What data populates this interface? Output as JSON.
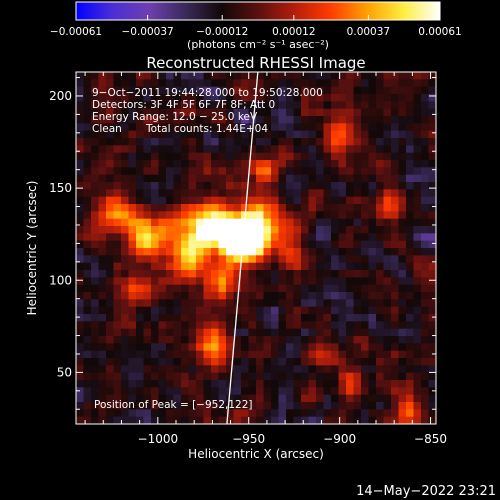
{
  "chart_data": {
    "type": "heatmap",
    "title": "Reconstructed RHESSI Image",
    "xlabel": "Heliocentric X (arcsec)",
    "ylabel": "Heliocentric Y (arcsec)",
    "xlim": [
      -1045,
      -847
    ],
    "ylim": [
      22,
      213
    ],
    "x_ticks": [
      -1000,
      -950,
      -900,
      -850
    ],
    "x_tick_labels": [
      "−1000",
      "−950",
      "−900",
      "−850"
    ],
    "y_ticks": [
      50,
      100,
      150,
      200
    ],
    "y_tick_labels": [
      "50",
      "100",
      "150",
      "200"
    ],
    "colorbar": {
      "range": [
        -0.00061,
        0.00061
      ],
      "ticks": [
        -0.00061,
        -0.00037,
        -0.00012,
        0.00012,
        0.00037,
        0.00061
      ],
      "tick_labels": [
        "−0.00061",
        "−0.00037",
        "−0.00012",
        "0.00012",
        "0.00037",
        "0.00061"
      ],
      "unit_label": "(photons cm⁻² s⁻¹ asec⁻²)",
      "colormap": [
        "#0000ff",
        "#4b2fd6",
        "#6d3fb0",
        "#3a2a5a",
        "#120808",
        "#5a1010",
        "#b41e0a",
        "#ff3c00",
        "#ffa000",
        "#ffee40",
        "#ffffff"
      ]
    },
    "annotations": {
      "time": "9−Oct−2011 19:44:28.000 to 19:50:28.000",
      "detectors": "Detectors: 3F 4F 5F 6F 7F 8F; Att 0",
      "energy": "Energy Range: 12.0 − 25.0 keV",
      "method": "Clean",
      "counts": "Total counts: 1.44E+04",
      "peak": "Position of Peak = [−952,122]"
    },
    "peak": {
      "x": -952,
      "y": 122
    },
    "limb": [
      [
        -962,
        22
      ],
      [
        -945,
        213
      ]
    ],
    "emission_sources": [
      {
        "x": -952,
        "y": 122,
        "sx": 8,
        "sy": 8,
        "amp": 1.0
      },
      {
        "x": -948,
        "y": 128,
        "sx": 14,
        "sy": 12,
        "amp": 0.7
      },
      {
        "x": -972,
        "y": 130,
        "sx": 9,
        "sy": 10,
        "amp": 0.65
      },
      {
        "x": -985,
        "y": 118,
        "sx": 10,
        "sy": 12,
        "amp": 0.55
      },
      {
        "x": -1005,
        "y": 126,
        "sx": 9,
        "sy": 9,
        "amp": 0.65
      },
      {
        "x": -1025,
        "y": 135,
        "sx": 8,
        "sy": 8,
        "amp": 0.45
      },
      {
        "x": -965,
        "y": 100,
        "sx": 7,
        "sy": 8,
        "amp": 0.45
      },
      {
        "x": -970,
        "y": 65,
        "sx": 6,
        "sy": 9,
        "amp": 0.55
      },
      {
        "x": -1010,
        "y": 95,
        "sx": 7,
        "sy": 7,
        "amp": 0.25
      },
      {
        "x": -902,
        "y": 178,
        "sx": 5,
        "sy": 7,
        "amp": 0.45
      },
      {
        "x": -872,
        "y": 140,
        "sx": 5,
        "sy": 6,
        "amp": 0.35
      },
      {
        "x": -912,
        "y": 58,
        "sx": 6,
        "sy": 5,
        "amp": 0.3
      },
      {
        "x": -893,
        "y": 45,
        "sx": 5,
        "sy": 5,
        "amp": 0.35
      },
      {
        "x": -863,
        "y": 30,
        "sx": 5,
        "sy": 5,
        "amp": 0.3
      },
      {
        "x": -925,
        "y": 112,
        "sx": 6,
        "sy": 6,
        "amp": 0.3
      },
      {
        "x": -940,
        "y": 160,
        "sx": 6,
        "sy": 6,
        "amp": 0.3
      }
    ],
    "grid": false
  },
  "footer": {
    "datestamp": "14−May−2022 23:21"
  }
}
